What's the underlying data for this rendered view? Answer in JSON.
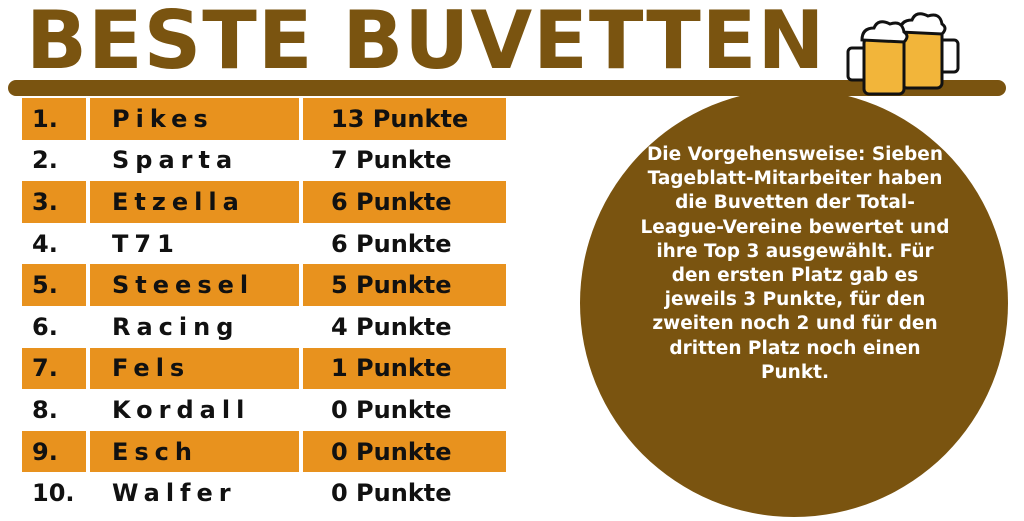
{
  "title": "BESTE BUVETTEN",
  "colors": {
    "brown": "#7a5410",
    "orange": "#e8921e",
    "text": "#111111"
  },
  "icon": "beer-mugs-icon",
  "chart_data": {
    "type": "table",
    "columns": [
      "rank",
      "club",
      "points"
    ],
    "rows": [
      {
        "rank": "1.",
        "club": "Pikes",
        "points": "13 Punkte"
      },
      {
        "rank": "2.",
        "club": "Sparta",
        "points": "7 Punkte"
      },
      {
        "rank": "3.",
        "club": "Etzella",
        "points": "6 Punkte"
      },
      {
        "rank": "4.",
        "club": "T71",
        "points": "6 Punkte"
      },
      {
        "rank": "5.",
        "club": "Steesel",
        "points": "5 Punkte"
      },
      {
        "rank": "6.",
        "club": "Racing",
        "points": "4 Punkte"
      },
      {
        "rank": "7.",
        "club": "Fels",
        "points": "1 Punkte"
      },
      {
        "rank": "8.",
        "club": "Kordall",
        "points": "0 Punkte"
      },
      {
        "rank": "9.",
        "club": "Esch",
        "points": "0 Punkte"
      },
      {
        "rank": "10.",
        "club": "Walfer",
        "points": "0 Punkte"
      }
    ]
  },
  "note": "Die Vorgehensweise: Sieben Tageblatt-Mitarbeiter haben die Buvetten der Total-League-Vereine bewertet und ihre Top 3 ausgewählt. Für den ersten Platz gab es jeweils 3 Punkte, für den zweiten noch 2 und für den dritten Platz noch einen Punkt."
}
